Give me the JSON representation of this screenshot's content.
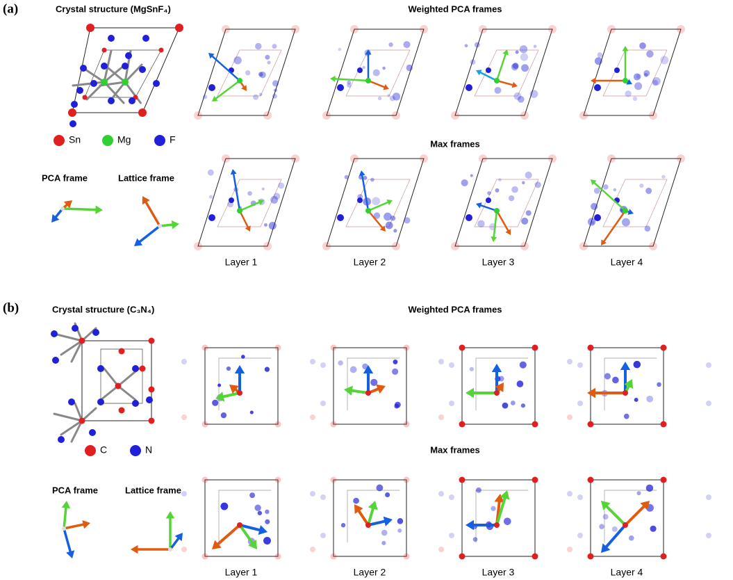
{
  "panels": [
    {
      "label": "(a)",
      "structure_title": "Crystal structure (MgSnF₄)",
      "legend": [
        {
          "name": "Sn",
          "color": "#e02020"
        },
        {
          "name": "Mg",
          "color": "#30d030"
        },
        {
          "name": "F",
          "color": "#2020d8"
        }
      ],
      "frame_labels": [
        "PCA frame",
        "Lattice frame"
      ],
      "rows": [
        "Weighted PCA frames",
        "Max frames"
      ],
      "layers": [
        "Layer 1",
        "Layer 2",
        "Layer 3",
        "Layer 4"
      ]
    },
    {
      "label": "(b)",
      "structure_title": "Crystal structure (C₃N₄)",
      "legend": [
        {
          "name": "C",
          "color": "#e02020"
        },
        {
          "name": "N",
          "color": "#2020d8"
        }
      ],
      "frame_labels": [
        "PCA frame",
        "Lattice frame"
      ],
      "rows": [
        "Weighted PCA frames",
        "Max frames"
      ],
      "layers": [
        "Layer 1",
        "Layer 2",
        "Layer 3",
        "Layer 4"
      ]
    }
  ]
}
